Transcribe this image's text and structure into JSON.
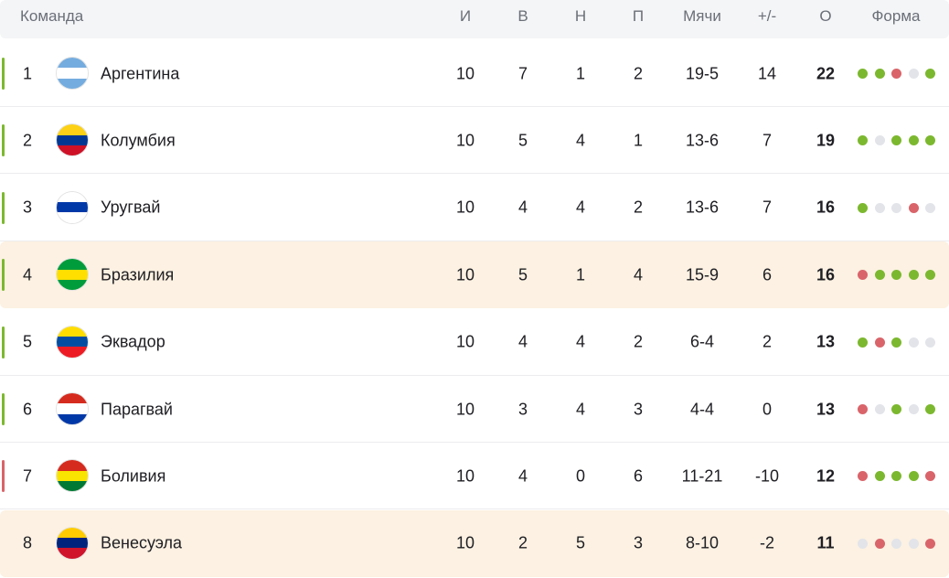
{
  "table": {
    "columns": [
      "Команда",
      "И",
      "В",
      "Н",
      "П",
      "Мячи",
      "+/-",
      "О",
      "Форма"
    ],
    "rows": [
      {
        "rank": 1,
        "team": "Аргентина",
        "played": 10,
        "won": 7,
        "drawn": 1,
        "lost": 2,
        "goals": "19-5",
        "diff": 14,
        "points": 22,
        "zone_color": "#7cb82f",
        "highlight": false,
        "flag": [
          "#74acdf",
          "#ffffff",
          "#74acdf"
        ],
        "form": [
          "#7cb82f",
          "#7cb82f",
          "#d9646a",
          "#e2e4e9",
          "#7cb82f"
        ]
      },
      {
        "rank": 2,
        "team": "Колумбия",
        "played": 10,
        "won": 5,
        "drawn": 4,
        "lost": 1,
        "goals": "13-6",
        "diff": 7,
        "points": 19,
        "zone_color": "#7cb82f",
        "highlight": false,
        "flag": [
          "#fcd116",
          "#003893",
          "#ce1126"
        ],
        "form": [
          "#7cb82f",
          "#e2e4e9",
          "#7cb82f",
          "#7cb82f",
          "#7cb82f"
        ]
      },
      {
        "rank": 3,
        "team": "Уругвай",
        "played": 10,
        "won": 4,
        "drawn": 4,
        "lost": 2,
        "goals": "13-6",
        "diff": 7,
        "points": 16,
        "zone_color": "#7cb82f",
        "highlight": false,
        "flag": [
          "#ffffff",
          "#0038a8",
          "#ffffff"
        ],
        "form": [
          "#7cb82f",
          "#e2e4e9",
          "#e2e4e9",
          "#d9646a",
          "#e2e4e9"
        ]
      },
      {
        "rank": 4,
        "team": "Бразилия",
        "played": 10,
        "won": 5,
        "drawn": 1,
        "lost": 4,
        "goals": "15-9",
        "diff": 6,
        "points": 16,
        "zone_color": "#7cb82f",
        "highlight": true,
        "flag": [
          "#009c3b",
          "#ffdf00",
          "#009c3b"
        ],
        "form": [
          "#d9646a",
          "#7cb82f",
          "#7cb82f",
          "#7cb82f",
          "#7cb82f"
        ]
      },
      {
        "rank": 5,
        "team": "Эквадор",
        "played": 10,
        "won": 4,
        "drawn": 4,
        "lost": 2,
        "goals": "6-4",
        "diff": 2,
        "points": 13,
        "zone_color": "#7cb82f",
        "highlight": false,
        "flag": [
          "#ffdd00",
          "#034ea2",
          "#ed1c24"
        ],
        "form": [
          "#7cb82f",
          "#d9646a",
          "#7cb82f",
          "#e2e4e9",
          "#e2e4e9"
        ]
      },
      {
        "rank": 6,
        "team": "Парагвай",
        "played": 10,
        "won": 3,
        "drawn": 4,
        "lost": 3,
        "goals": "4-4",
        "diff": 0,
        "points": 13,
        "zone_color": "#7cb82f",
        "highlight": false,
        "flag": [
          "#d52b1e",
          "#ffffff",
          "#0038a8"
        ],
        "form": [
          "#d9646a",
          "#e2e4e9",
          "#7cb82f",
          "#e2e4e9",
          "#7cb82f"
        ]
      },
      {
        "rank": 7,
        "team": "Боливия",
        "played": 10,
        "won": 4,
        "drawn": 0,
        "lost": 6,
        "goals": "11-21",
        "diff": -10,
        "points": 12,
        "zone_color": "#d9646a",
        "highlight": false,
        "flag": [
          "#d52b1e",
          "#f9e300",
          "#007934"
        ],
        "form": [
          "#d9646a",
          "#7cb82f",
          "#7cb82f",
          "#7cb82f",
          "#d9646a"
        ]
      },
      {
        "rank": 8,
        "team": "Венесуэла",
        "played": 10,
        "won": 2,
        "drawn": 5,
        "lost": 3,
        "goals": "8-10",
        "diff": -2,
        "points": 11,
        "zone_color": null,
        "highlight": true,
        "flag": [
          "#ffcc00",
          "#00247d",
          "#cf142b"
        ],
        "form": [
          "#e2e4e9",
          "#d9646a",
          "#e2e4e9",
          "#e2e4e9",
          "#d9646a"
        ]
      }
    ]
  }
}
